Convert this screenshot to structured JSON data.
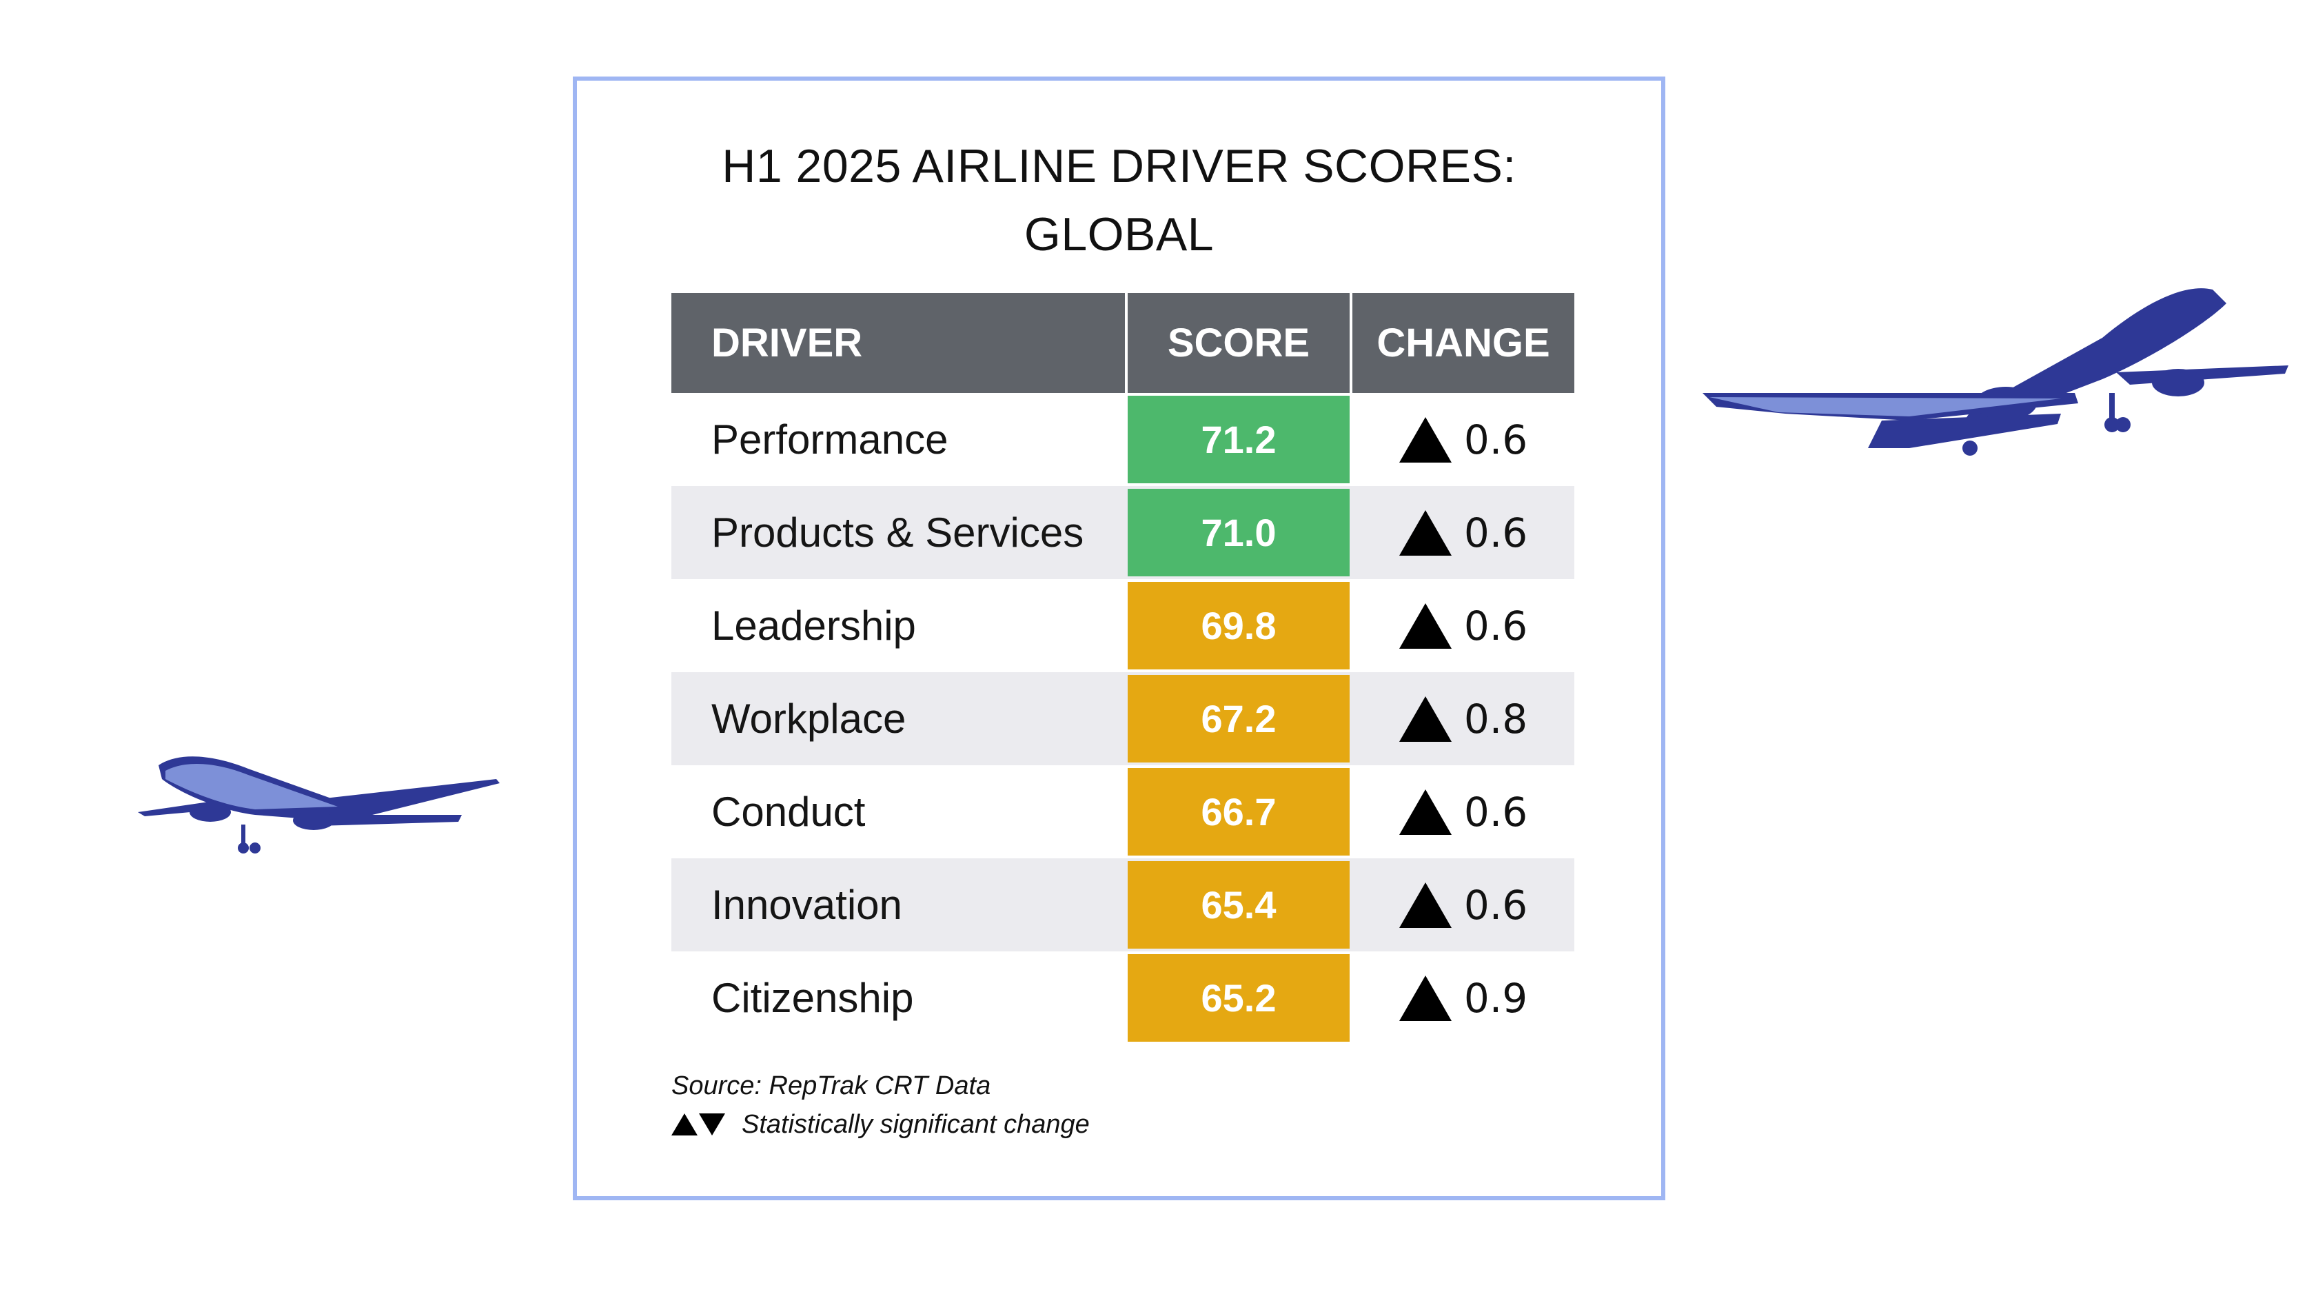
{
  "chart_data": {
    "type": "table",
    "title_lines": [
      "H1 2025 AIRLINE DRIVER SCORES:",
      "GLOBAL"
    ],
    "columns": [
      "DRIVER",
      "SCORE",
      "CHANGE"
    ],
    "rows": [
      {
        "driver": "Performance",
        "score": "71.2",
        "change": "0.6",
        "direction": "up",
        "score_color": "#4db86c"
      },
      {
        "driver": "Products & Services",
        "score": "71.0",
        "change": "0.6",
        "direction": "up",
        "score_color": "#4db86c"
      },
      {
        "driver": "Leadership",
        "score": "69.8",
        "change": "0.6",
        "direction": "up",
        "score_color": "#e5a812"
      },
      {
        "driver": "Workplace",
        "score": "67.2",
        "change": "0.8",
        "direction": "up",
        "score_color": "#e5a812"
      },
      {
        "driver": "Conduct",
        "score": "66.7",
        "change": "0.6",
        "direction": "up",
        "score_color": "#e5a812"
      },
      {
        "driver": "Innovation",
        "score": "65.4",
        "change": "0.6",
        "direction": "up",
        "score_color": "#e5a812"
      },
      {
        "driver": "Citizenship",
        "score": "65.2",
        "change": "0.9",
        "direction": "up",
        "score_color": "#e5a812"
      }
    ],
    "source": "Source: RepTrak CRT Data",
    "legend_note": "Statistically significant change"
  },
  "colors": {
    "header_bg": "#5f6369",
    "shaded_row": "#ebebef",
    "card_border": "#9fb6f3",
    "plane": "#2e3896"
  },
  "icons": {
    "left_plane": "airplane-icon",
    "right_plane": "airplane-icon"
  }
}
